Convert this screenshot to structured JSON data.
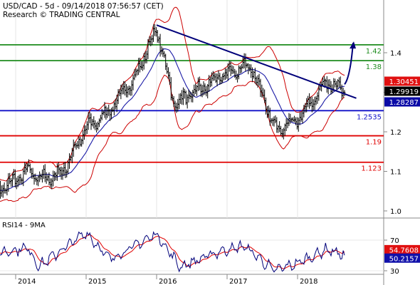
{
  "header": {
    "line1": "USD/CAD - 5d - 09/14/2018 07:56:57 (CET)",
    "line2": "Research © TRADING CENTRAL"
  },
  "rsi_label": "RSI14 - 9MA",
  "colors": {
    "price": "#000000",
    "bollinger": "#cc0000",
    "moving_average": "#1a1aa6",
    "trendline": "#00007a",
    "green_level": "#1e8c1e",
    "blue_level": "#1010c8",
    "red_level": "#e00000",
    "tag_last": "#000000",
    "tag_red": "#e01010",
    "tag_blue": "#0a0aa6",
    "rsi_line": "#00007a",
    "rsi_signal": "#e00000",
    "tag_rsi_red": "#e01010",
    "tag_rsi_blue": "#1010aa"
  },
  "chart_data": [
    {
      "type": "candlestick",
      "title": "USD/CAD - 5d - 09/14/2018 07:56:57 (CET)",
      "ylim": [
        0.97,
        1.49
      ],
      "y_ticks": [
        "1.0",
        "1.1",
        "1.2",
        "1.3",
        "1.4"
      ],
      "x_ticks": [
        "2014",
        "2015",
        "2016",
        "2017",
        "2018"
      ],
      "approx_path": [
        {
          "x": "2013-09",
          "y": 1.04
        },
        {
          "x": "2013-12",
          "y": 1.07
        },
        {
          "x": "2014-03",
          "y": 1.1
        },
        {
          "x": "2014-06",
          "y": 1.08
        },
        {
          "x": "2014-09",
          "y": 1.1
        },
        {
          "x": "2015-01",
          "y": 1.21
        },
        {
          "x": "2015-04",
          "y": 1.24
        },
        {
          "x": "2015-09",
          "y": 1.33
        },
        {
          "x": "2016-01",
          "y": 1.46
        },
        {
          "x": "2016-04",
          "y": 1.27
        },
        {
          "x": "2016-12",
          "y": 1.34
        },
        {
          "x": "2017-05",
          "y": 1.37
        },
        {
          "x": "2017-09",
          "y": 1.21
        },
        {
          "x": "2018-01",
          "y": 1.23
        },
        {
          "x": "2018-06",
          "y": 1.33
        },
        {
          "x": "2018-09",
          "y": 1.3
        }
      ],
      "levels": [
        {
          "label": "1.42",
          "value": 1.42
        },
        {
          "label": "1.38",
          "value": 1.38
        },
        {
          "label": "1.2535",
          "value": 1.2535
        },
        {
          "label": "1.19",
          "value": 1.19
        },
        {
          "label": "1.123",
          "value": 1.123
        }
      ],
      "price_tags": [
        {
          "label": "1.30451",
          "value": 1.30451
        },
        {
          "label": "1.29919",
          "value": 1.29919
        },
        {
          "label": "1.28287",
          "value": 1.28287
        }
      ]
    },
    {
      "type": "line",
      "title": "RSI14 - 9MA",
      "ylim": [
        25,
        85
      ],
      "y_ticks": [
        "30",
        "70"
      ],
      "approx_path": [
        {
          "x": "2013-09",
          "y": 52
        },
        {
          "x": "2014-03",
          "y": 60
        },
        {
          "x": "2014-05",
          "y": 36
        },
        {
          "x": "2015-01",
          "y": 80
        },
        {
          "x": "2015-05",
          "y": 45
        },
        {
          "x": "2016-01",
          "y": 78
        },
        {
          "x": "2016-05",
          "y": 35
        },
        {
          "x": "2016-12",
          "y": 56
        },
        {
          "x": "2017-04",
          "y": 62
        },
        {
          "x": "2017-09",
          "y": 30
        },
        {
          "x": "2018-01",
          "y": 40
        },
        {
          "x": "2018-06",
          "y": 58
        },
        {
          "x": "2018-09",
          "y": 50
        }
      ],
      "tags": [
        {
          "label": "54.7608",
          "value": 54.7608
        },
        {
          "label": "50.2157",
          "value": 50.2157
        }
      ]
    }
  ]
}
